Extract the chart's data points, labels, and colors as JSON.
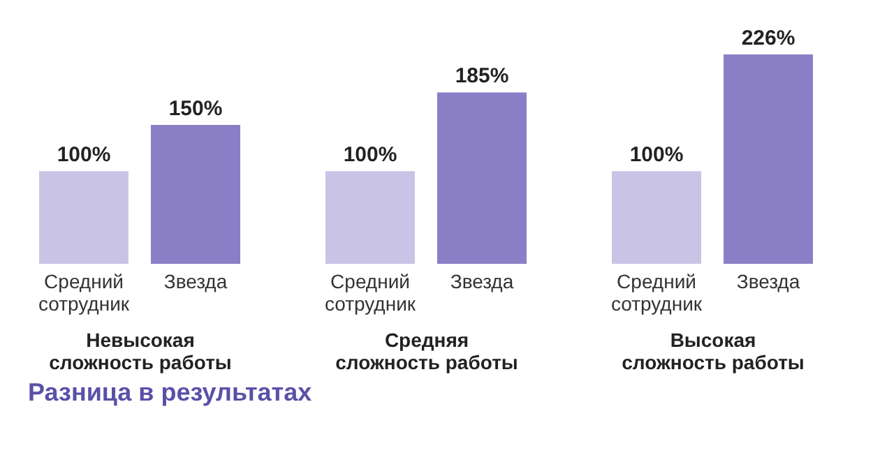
{
  "chart_data": [
    {
      "type": "bar",
      "categories": [
        "Средний сотрудник",
        "Звезда"
      ],
      "values": [
        100,
        150
      ],
      "colors": [
        "#c9c4e6",
        "#8a7fc6"
      ],
      "value_labels": [
        "100%",
        "150%"
      ],
      "xlabel": "Невысокая сложность работы"
    },
    {
      "type": "bar",
      "categories": [
        "Средний сотрудник",
        "Звезда"
      ],
      "values": [
        100,
        185
      ],
      "colors": [
        "#c9c4e6",
        "#8a7fc6"
      ],
      "value_labels": [
        "100%",
        "185%"
      ],
      "xlabel": "Средняя сложность работы"
    },
    {
      "type": "bar",
      "categories": [
        "Средний сотрудник",
        "Звезда"
      ],
      "values": [
        100,
        226
      ],
      "colors": [
        "#c9c4e6",
        "#8a7fc6"
      ],
      "value_labels": [
        "100%",
        "226%"
      ],
      "xlabel": "Высокая сложность работы",
      "annotations": [
        "Разница в результатах"
      ]
    }
  ]
}
